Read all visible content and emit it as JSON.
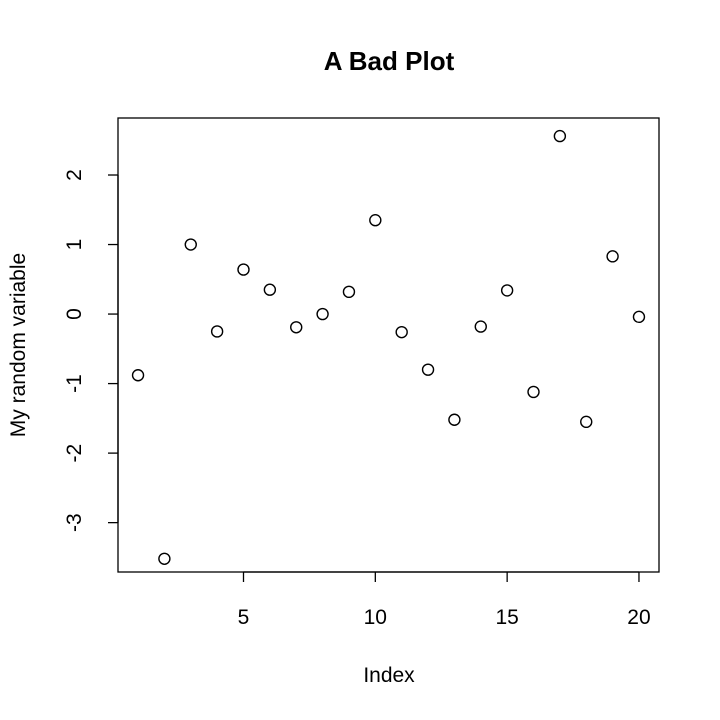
{
  "chart_data": {
    "type": "scatter",
    "title": "A Bad Plot",
    "xlabel": "Index",
    "ylabel": "My random variable",
    "xlim": [
      0.24,
      20.76
    ],
    "ylim": [
      -3.71,
      2.82
    ],
    "xticks": [
      5,
      10,
      15,
      20
    ],
    "yticks": [
      -3,
      -2,
      -1,
      0,
      1,
      2
    ],
    "grid": false,
    "points": [
      {
        "x": 1,
        "y": -0.88
      },
      {
        "x": 2,
        "y": -3.52
      },
      {
        "x": 3,
        "y": 1.0
      },
      {
        "x": 4,
        "y": -0.25
      },
      {
        "x": 5,
        "y": 0.64
      },
      {
        "x": 6,
        "y": 0.35
      },
      {
        "x": 7,
        "y": -0.19
      },
      {
        "x": 8,
        "y": 0.0
      },
      {
        "x": 9,
        "y": 0.32
      },
      {
        "x": 10,
        "y": 1.35
      },
      {
        "x": 11,
        "y": -0.26
      },
      {
        "x": 12,
        "y": -0.8
      },
      {
        "x": 13,
        "y": -1.52
      },
      {
        "x": 14,
        "y": -0.18
      },
      {
        "x": 15,
        "y": 0.34
      },
      {
        "x": 16,
        "y": -1.12
      },
      {
        "x": 17,
        "y": 2.56
      },
      {
        "x": 18,
        "y": -1.55
      },
      {
        "x": 19,
        "y": 0.83
      },
      {
        "x": 20,
        "y": -0.04
      }
    ]
  }
}
